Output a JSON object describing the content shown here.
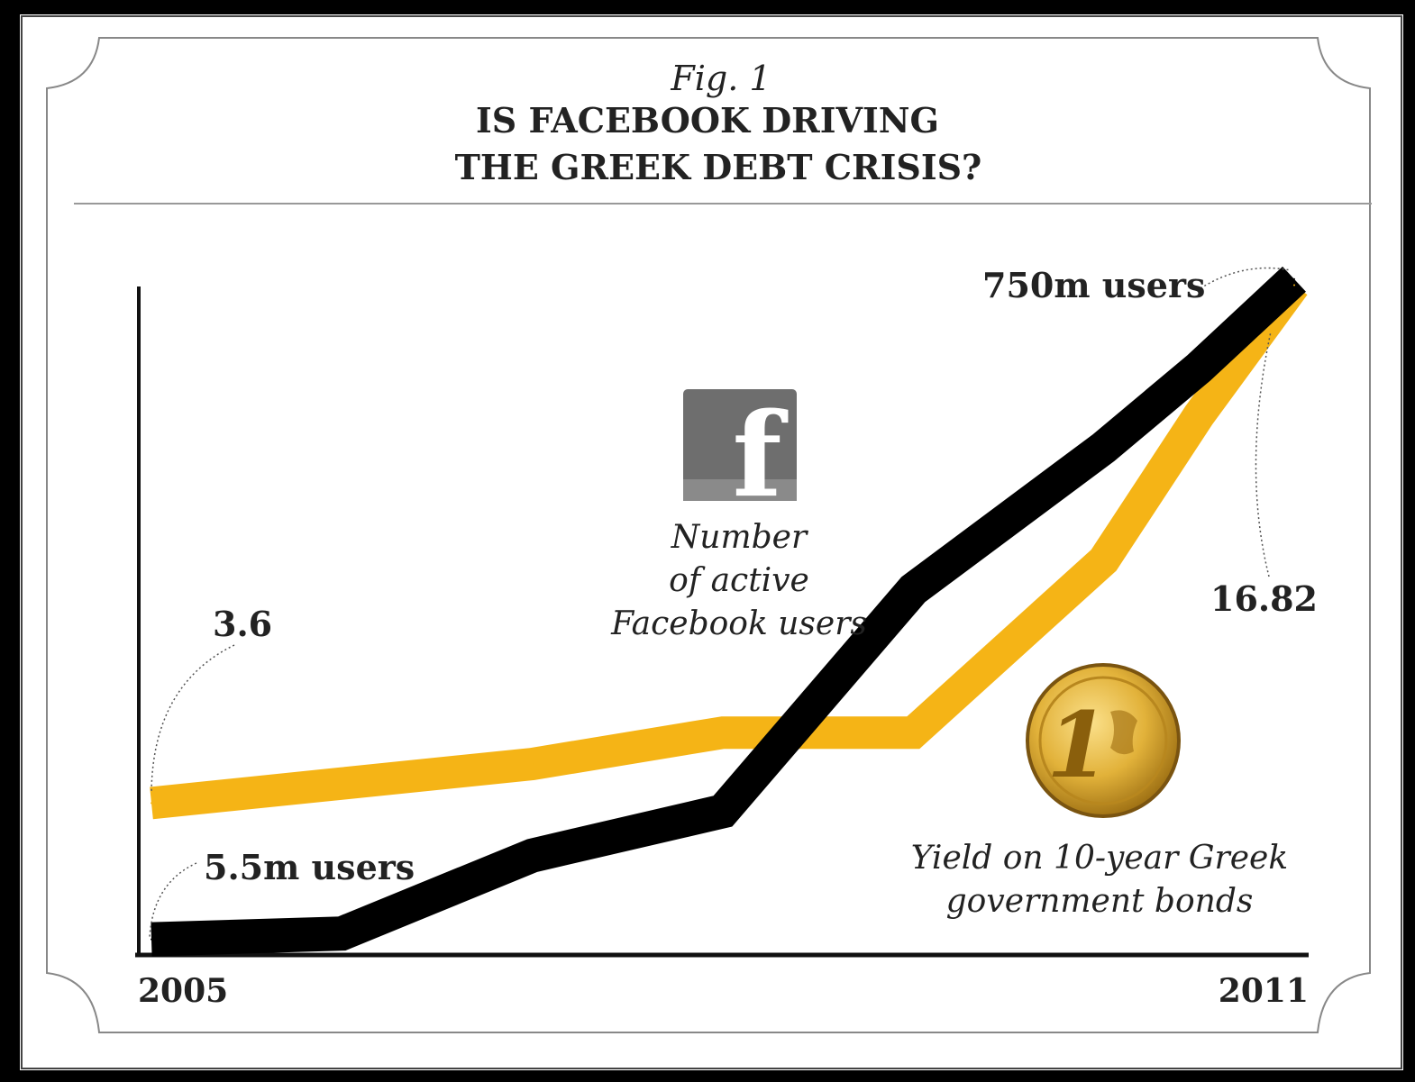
{
  "chart_data": {
    "type": "line",
    "fig_label": "Fig. 1",
    "title_lines": [
      "IS FACEBOOK DRIVING",
      "THE GREEK DEBT CRISIS?"
    ],
    "x_tick_labels": [
      "2005",
      "2011"
    ],
    "x": [
      2005,
      2006,
      2007,
      2008,
      2009,
      2010,
      2010.5,
      2011
    ],
    "series": [
      {
        "key": "facebook",
        "name": "Number of active Facebook users",
        "name_lines": [
          "Number",
          "of active",
          "Facebook users"
        ],
        "units": "million users",
        "color": "#000000",
        "values": [
          5.5,
          12,
          100,
          150,
          400,
          560,
          650,
          750
        ]
      },
      {
        "key": "bond",
        "name": "Yield on 10-year Greek government bonds",
        "name_lines": [
          "Yield on 10-year Greek",
          "government bonds"
        ],
        "units": "%",
        "color": "#F5B416",
        "values": [
          3.6,
          4.1,
          4.6,
          5.4,
          5.4,
          9.8,
          13.5,
          16.82
        ]
      }
    ],
    "annotations": {
      "fb_start": "5.5m users",
      "fb_end": "750m users",
      "bond_start": "3.6",
      "bond_end": "16.82"
    },
    "icons": {
      "facebook": {
        "name": "facebook-logo-icon",
        "glyph": "f"
      },
      "coin": {
        "name": "one-euro-coin-icon"
      }
    },
    "ranges": {
      "facebook": [
        0,
        760
      ],
      "bond": [
        0,
        17.2
      ]
    },
    "grid": false,
    "legend": "none"
  }
}
